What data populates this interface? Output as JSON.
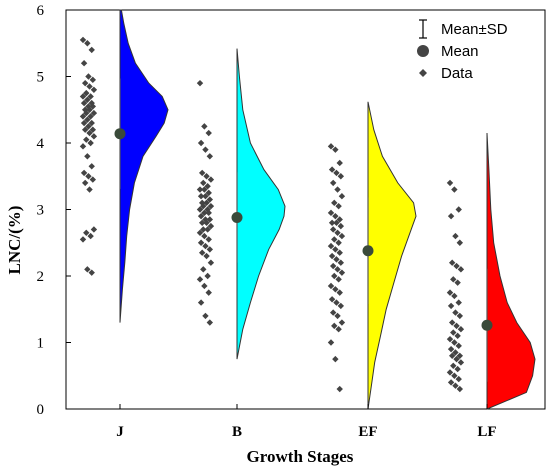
{
  "chart_data": {
    "type": "raincloud",
    "xlabel": "Growth Stages",
    "ylabel": "LNC/(%)",
    "ylim": [
      0,
      6
    ],
    "yticks": [
      "0",
      "1",
      "2",
      "3",
      "4",
      "5",
      "6"
    ],
    "categories": [
      "J",
      "B",
      "EF",
      "LF"
    ],
    "legend": {
      "placement": "top-right",
      "items": [
        {
          "label": "Mean±SD",
          "marker": "errorbar"
        },
        {
          "label": "Mean",
          "marker": "circle"
        },
        {
          "label": "Data",
          "marker": "diamond"
        }
      ]
    },
    "series": [
      {
        "category": "J",
        "color": "#0000FF",
        "mean": 4.14,
        "sd": 0.83,
        "range": [
          1.3,
          6.0
        ],
        "density": [
          [
            1.3,
            0
          ],
          [
            1.8,
            0.05
          ],
          [
            2.2,
            0.1
          ],
          [
            2.6,
            0.14
          ],
          [
            3.0,
            0.2
          ],
          [
            3.4,
            0.3
          ],
          [
            3.8,
            0.48
          ],
          [
            4.1,
            0.75
          ],
          [
            4.3,
            0.92
          ],
          [
            4.5,
            1.0
          ],
          [
            4.7,
            0.88
          ],
          [
            4.9,
            0.6
          ],
          [
            5.2,
            0.32
          ],
          [
            5.5,
            0.17
          ],
          [
            5.8,
            0.08
          ],
          [
            6.0,
            0.03
          ]
        ],
        "points": [
          5.55,
          5.5,
          5.4,
          5.2,
          5.0,
          4.95,
          4.9,
          4.85,
          4.8,
          4.75,
          4.7,
          4.7,
          4.65,
          4.6,
          4.6,
          4.55,
          4.55,
          4.5,
          4.5,
          4.45,
          4.45,
          4.4,
          4.4,
          4.35,
          4.3,
          4.3,
          4.25,
          4.2,
          4.2,
          4.15,
          4.1,
          4.05,
          4.0,
          3.95,
          3.8,
          3.65,
          3.55,
          3.5,
          3.45,
          3.4,
          3.3,
          2.7,
          2.65,
          2.6,
          2.55,
          2.1,
          2.05
        ]
      },
      {
        "category": "B",
        "color": "#00FFFF",
        "mean": 2.88,
        "sd": 0.68,
        "range": [
          0.75,
          5.42
        ],
        "density": [
          [
            0.75,
            0
          ],
          [
            1.2,
            0.12
          ],
          [
            1.6,
            0.28
          ],
          [
            2.0,
            0.45
          ],
          [
            2.4,
            0.66
          ],
          [
            2.7,
            0.88
          ],
          [
            2.9,
            0.98
          ],
          [
            3.05,
            1.0
          ],
          [
            3.3,
            0.86
          ],
          [
            3.6,
            0.56
          ],
          [
            4.0,
            0.28
          ],
          [
            4.5,
            0.12
          ],
          [
            5.0,
            0.05
          ],
          [
            5.42,
            0
          ]
        ],
        "points": [
          4.9,
          4.25,
          4.15,
          4.0,
          3.9,
          3.8,
          3.55,
          3.5,
          3.45,
          3.4,
          3.35,
          3.3,
          3.3,
          3.25,
          3.2,
          3.2,
          3.15,
          3.1,
          3.1,
          3.05,
          3.05,
          3.0,
          3.0,
          2.95,
          2.95,
          2.9,
          2.85,
          2.85,
          2.8,
          2.8,
          2.75,
          2.7,
          2.7,
          2.65,
          2.6,
          2.55,
          2.5,
          2.45,
          2.4,
          2.35,
          2.3,
          2.2,
          2.1,
          2.0,
          1.95,
          1.85,
          1.75,
          1.6,
          1.4,
          1.3
        ]
      },
      {
        "category": "EF",
        "color": "#FFFF00",
        "mean": 2.38,
        "sd": 0.8,
        "range": [
          0.0,
          4.62
        ],
        "density": [
          [
            0.0,
            0
          ],
          [
            0.3,
            0.06
          ],
          [
            0.7,
            0.14
          ],
          [
            1.1,
            0.26
          ],
          [
            1.5,
            0.38
          ],
          [
            1.9,
            0.54
          ],
          [
            2.3,
            0.7
          ],
          [
            2.7,
            0.9
          ],
          [
            2.9,
            1.0
          ],
          [
            3.1,
            0.95
          ],
          [
            3.4,
            0.62
          ],
          [
            3.8,
            0.3
          ],
          [
            4.2,
            0.12
          ],
          [
            4.62,
            0
          ]
        ],
        "points": [
          3.95,
          3.9,
          3.7,
          3.6,
          3.55,
          3.5,
          3.4,
          3.3,
          3.2,
          3.1,
          3.05,
          2.95,
          2.9,
          2.85,
          2.8,
          2.8,
          2.75,
          2.7,
          2.65,
          2.6,
          2.55,
          2.5,
          2.45,
          2.4,
          2.35,
          2.3,
          2.25,
          2.2,
          2.15,
          2.1,
          2.05,
          2.0,
          1.95,
          1.85,
          1.8,
          1.75,
          1.65,
          1.6,
          1.55,
          1.45,
          1.4,
          1.3,
          1.25,
          1.2,
          1.0,
          0.75,
          0.3
        ]
      },
      {
        "category": "LF",
        "color": "#FF0000",
        "mean": 1.26,
        "sd": 0.85,
        "range": [
          0.0,
          4.15
        ],
        "density": [
          [
            0.0,
            0
          ],
          [
            0.25,
            0.82
          ],
          [
            0.5,
            0.95
          ],
          [
            0.75,
            1.0
          ],
          [
            1.0,
            0.9
          ],
          [
            1.3,
            0.62
          ],
          [
            1.6,
            0.42
          ],
          [
            2.0,
            0.27
          ],
          [
            2.5,
            0.14
          ],
          [
            3.0,
            0.08
          ],
          [
            3.6,
            0.04
          ],
          [
            4.15,
            0
          ]
        ],
        "points": [
          3.4,
          3.3,
          3.0,
          2.9,
          2.6,
          2.5,
          2.2,
          2.15,
          2.1,
          1.95,
          1.9,
          1.75,
          1.7,
          1.6,
          1.55,
          1.45,
          1.4,
          1.3,
          1.25,
          1.2,
          1.15,
          1.1,
          1.05,
          1.0,
          0.95,
          0.9,
          0.85,
          0.8,
          0.8,
          0.75,
          0.7,
          0.65,
          0.6,
          0.55,
          0.5,
          0.45,
          0.4,
          0.35,
          0.3
        ]
      }
    ]
  }
}
